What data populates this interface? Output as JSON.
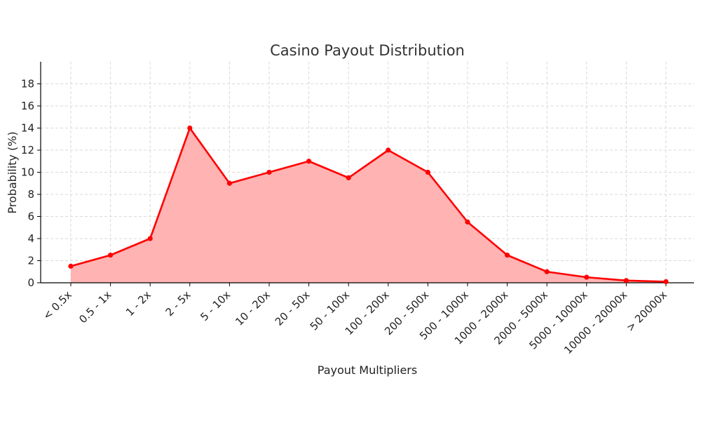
{
  "chart_data": {
    "type": "area",
    "title": "Casino Payout Distribution",
    "xlabel": "Payout Multipliers",
    "ylabel": "Probability (%)",
    "categories": [
      "< 0.5x",
      "0.5 - 1x",
      "1 - 2x",
      "2 - 5x",
      "5 - 10x",
      "10 - 20x",
      "20 - 50x",
      "50 - 100x",
      "100 - 200x",
      "200 - 500x",
      "500 - 1000x",
      "1000 - 2000x",
      "2000 - 5000x",
      "5000 - 10000x",
      "10000 - 20000x",
      "> 20000x"
    ],
    "series": [
      {
        "name": "Probability",
        "values": [
          1.5,
          2.5,
          4,
          14,
          9,
          10,
          11,
          9.5,
          12,
          10,
          5.5,
          2.5,
          1,
          0.5,
          0.2,
          0.1
        ],
        "line_color": "#ff0000",
        "fill_color": "#ffb3b3"
      }
    ],
    "ylim": [
      0,
      20
    ],
    "yticks": [
      0,
      2,
      4,
      6,
      8,
      10,
      12,
      14,
      16,
      18
    ],
    "grid": true,
    "legend": "none"
  }
}
